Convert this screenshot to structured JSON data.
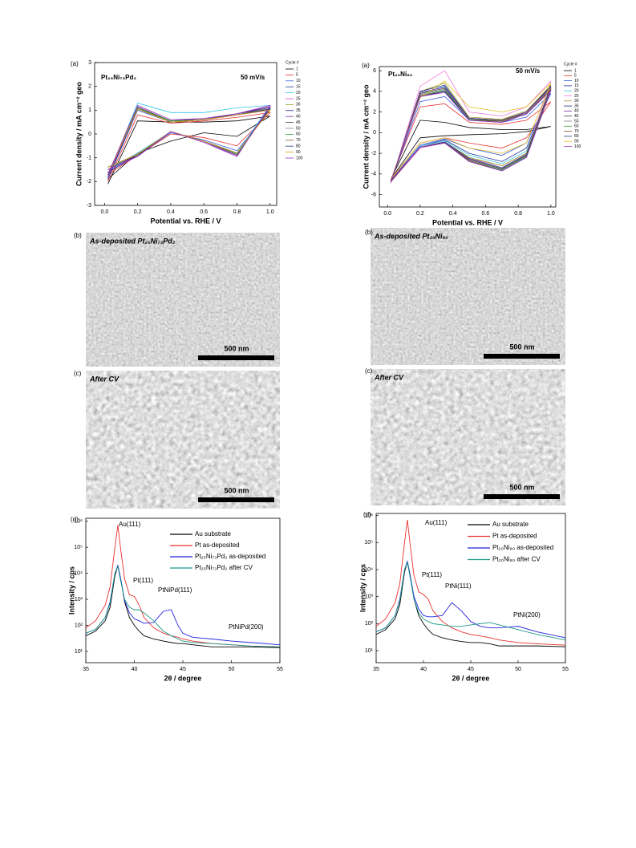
{
  "chart_data": [
    {
      "type": "line",
      "panel_label": "(a)",
      "xlabel": "Potential vs. RHE / V",
      "ylabel": "Current density / mA cm⁻² geo",
      "annotations": [
        {
          "text": "Pt₂₅Ni₇₃Pd₂"
        },
        {
          "text": "50 mV/s"
        }
      ],
      "x": [
        0.02,
        0.2,
        0.4,
        0.6,
        0.8,
        1.0,
        0.8,
        0.6,
        0.4,
        0.2,
        0.02
      ],
      "xlim": [
        -0.06,
        1.04
      ],
      "xticks": [
        {
          "value": 0,
          "label": "0.0"
        },
        0.2,
        0.4,
        0.6,
        0.8,
        {
          "value": 1,
          "label": "1.0"
        }
      ],
      "ylim": [
        -3,
        3
      ],
      "yticks": [
        -3,
        -2,
        -1,
        0,
        1,
        2,
        3
      ],
      "legend_title": "Cycle #",
      "series": [
        {
          "name": "1",
          "color": "#000000",
          "values": [
            -2.1,
            0.55,
            0.5,
            0.5,
            0.55,
            0.75,
            -0.1,
            0.05,
            -0.3,
            -0.8,
            -1.9
          ]
        },
        {
          "name": "5",
          "color": "#e8312f",
          "values": [
            -2.0,
            0.8,
            0.45,
            0.55,
            0.7,
            0.9,
            -0.5,
            -0.15,
            0.0,
            -0.9,
            -1.7
          ]
        },
        {
          "name": "10",
          "color": "#3b5fe0",
          "values": [
            -1.9,
            1.0,
            0.5,
            0.6,
            0.8,
            1.0,
            -0.7,
            -0.25,
            0.05,
            -0.9,
            -1.6
          ]
        },
        {
          "name": "15",
          "color": "#1f2f9a",
          "values": [
            -1.9,
            1.05,
            0.5,
            0.6,
            0.8,
            1.05,
            -0.8,
            -0.3,
            0.1,
            -0.9,
            -1.6
          ]
        },
        {
          "name": "20",
          "color": "#31c6e8",
          "values": [
            -1.8,
            1.3,
            0.9,
            0.9,
            1.1,
            1.2,
            -0.8,
            -0.3,
            0.1,
            -0.8,
            -1.5
          ]
        },
        {
          "name": "25",
          "color": "#e04fd0",
          "values": [
            -1.8,
            1.1,
            0.5,
            0.6,
            0.85,
            1.1,
            -0.9,
            -0.3,
            0.1,
            -0.9,
            -1.5
          ]
        },
        {
          "name": "30",
          "color": "#9a9a20",
          "values": [
            -1.8,
            1.1,
            0.5,
            0.6,
            0.85,
            1.1,
            -0.85,
            -0.3,
            0.1,
            -0.9,
            -1.5
          ]
        },
        {
          "name": "35",
          "color": "#202080",
          "values": [
            -1.8,
            1.1,
            0.55,
            0.6,
            0.85,
            1.1,
            -0.85,
            -0.3,
            0.1,
            -0.9,
            -1.5
          ]
        },
        {
          "name": "40",
          "color": "#7a2a9a",
          "values": [
            -1.8,
            1.15,
            0.55,
            0.65,
            0.85,
            1.15,
            -0.9,
            -0.35,
            0.1,
            -0.9,
            -1.5
          ]
        },
        {
          "name": "45",
          "color": "#404040",
          "values": [
            -1.7,
            1.1,
            0.55,
            0.6,
            0.8,
            1.1,
            -0.85,
            -0.3,
            0.1,
            -0.9,
            -1.4
          ]
        },
        {
          "name": "50",
          "color": "#808080",
          "values": [
            -1.7,
            1.1,
            0.55,
            0.6,
            0.8,
            1.1,
            -0.85,
            -0.3,
            0.1,
            -0.85,
            -1.4
          ]
        },
        {
          "name": "60",
          "color": "#2a9a3a",
          "values": [
            -1.7,
            1.1,
            0.55,
            0.6,
            0.8,
            1.05,
            -0.85,
            -0.3,
            0.1,
            -0.85,
            -1.4
          ]
        },
        {
          "name": "70",
          "color": "#8a5a2a",
          "values": [
            -1.7,
            1.05,
            0.5,
            0.6,
            0.8,
            1.05,
            -0.8,
            -0.3,
            0.1,
            -0.85,
            -1.4
          ]
        },
        {
          "name": "80",
          "color": "#2a3a8a",
          "values": [
            -1.7,
            1.05,
            0.5,
            0.6,
            0.8,
            1.05,
            -0.8,
            -0.3,
            0.1,
            -0.85,
            -1.4
          ]
        },
        {
          "name": "90",
          "color": "#e0a020",
          "values": [
            -1.7,
            1.05,
            0.5,
            0.6,
            0.8,
            1.0,
            -0.8,
            -0.3,
            0.1,
            -0.85,
            -1.4
          ]
        },
        {
          "name": "100",
          "color": "#9a30c0",
          "values": [
            -1.7,
            1.2,
            0.6,
            0.65,
            0.85,
            1.2,
            -0.95,
            -0.35,
            0.1,
            -0.95,
            -1.5
          ]
        }
      ]
    },
    {
      "type": "line",
      "panel_label": "(a)",
      "xlabel": "Potential vs. RHE / V",
      "ylabel": "Current density / mA cm⁻² geo",
      "annotations": [
        {
          "text": "Pt₂₀Ni₈₀"
        },
        {
          "text": "50 mV/s"
        }
      ],
      "x": [
        0.02,
        0.2,
        0.35,
        0.5,
        0.7,
        0.85,
        1.0,
        0.85,
        0.7,
        0.5,
        0.35,
        0.2,
        0.02
      ],
      "xlim": [
        -0.05,
        1.03
      ],
      "xticks": [
        {
          "value": 0,
          "label": "0.0"
        },
        0.2,
        0.4,
        0.6,
        0.8,
        {
          "value": 1,
          "label": "1.0"
        }
      ],
      "ylim": [
        -7.2,
        6.4
      ],
      "yticks": [
        -6,
        -4,
        -2,
        0,
        2,
        4,
        6
      ],
      "legend_title": "Cycle #",
      "series": [
        {
          "name": "1",
          "color": "#000000",
          "values": [
            -4.5,
            1.2,
            1.0,
            0.5,
            0.3,
            0.3,
            0.6,
            0.1,
            -0.1,
            -0.2,
            -0.3,
            -0.5,
            -4.5
          ]
        },
        {
          "name": "5",
          "color": "#e8312f",
          "values": [
            -4.6,
            2.5,
            2.8,
            1.0,
            0.8,
            1.2,
            3.0,
            -0.5,
            -1.5,
            -1.0,
            -0.5,
            -1.0,
            -4.5
          ]
        },
        {
          "name": "10",
          "color": "#3b5fe0",
          "values": [
            -4.7,
            3.0,
            3.5,
            1.2,
            1.0,
            1.5,
            3.8,
            -1.0,
            -2.2,
            -1.5,
            -0.6,
            -1.2,
            -4.6
          ]
        },
        {
          "name": "15",
          "color": "#1f2f9a",
          "values": [
            -4.8,
            3.5,
            4.0,
            1.3,
            1.1,
            1.8,
            4.2,
            -1.5,
            -2.8,
            -2.0,
            -0.7,
            -1.3,
            -4.7
          ]
        },
        {
          "name": "20",
          "color": "#31c6e8",
          "values": [
            -4.8,
            3.8,
            4.5,
            1.4,
            1.2,
            2.0,
            4.5,
            -1.8,
            -3.0,
            -2.2,
            -0.8,
            -1.3,
            -4.7
          ]
        },
        {
          "name": "25",
          "color": "#f07ad8",
          "values": [
            -4.9,
            4.5,
            6.0,
            2.0,
            1.6,
            2.5,
            5.0,
            -2.0,
            -3.2,
            -2.5,
            -1.0,
            -1.5,
            -4.8
          ]
        },
        {
          "name": "30",
          "color": "#9a9a20",
          "values": [
            -4.8,
            4.0,
            4.8,
            1.5,
            1.3,
            2.1,
            4.6,
            -2.0,
            -3.2,
            -2.4,
            -0.9,
            -1.4,
            -4.7
          ]
        },
        {
          "name": "35",
          "color": "#202080",
          "values": [
            -4.8,
            4.0,
            4.6,
            1.4,
            1.2,
            2.0,
            4.5,
            -2.1,
            -3.4,
            -2.5,
            -0.9,
            -1.4,
            -4.7
          ]
        },
        {
          "name": "40",
          "color": "#7a2a9a",
          "values": [
            -4.8,
            3.9,
            4.4,
            1.4,
            1.2,
            2.0,
            4.4,
            -2.2,
            -3.5,
            -2.6,
            -1.0,
            -1.4,
            -4.7
          ]
        },
        {
          "name": "45",
          "color": "#404040",
          "values": [
            -4.8,
            3.8,
            4.3,
            1.3,
            1.2,
            1.9,
            4.3,
            -2.2,
            -3.5,
            -2.6,
            -1.0,
            -1.4,
            -4.7
          ]
        },
        {
          "name": "50",
          "color": "#808080",
          "values": [
            -4.7,
            3.7,
            4.2,
            1.3,
            1.1,
            1.9,
            4.3,
            -2.3,
            -3.6,
            -2.7,
            -1.0,
            -1.4,
            -4.6
          ]
        },
        {
          "name": "60",
          "color": "#2a9a3a",
          "values": [
            -4.7,
            3.6,
            4.1,
            1.3,
            1.1,
            1.8,
            4.2,
            -2.3,
            -3.6,
            -2.7,
            -1.0,
            -1.4,
            -4.6
          ]
        },
        {
          "name": "70",
          "color": "#8a5a2a",
          "values": [
            -4.7,
            3.6,
            4.0,
            1.2,
            1.1,
            1.8,
            4.2,
            -2.4,
            -3.7,
            -2.7,
            -1.0,
            -1.4,
            -4.6
          ]
        },
        {
          "name": "80",
          "color": "#2a3a8a",
          "values": [
            -4.7,
            3.5,
            4.0,
            1.2,
            1.0,
            1.8,
            4.1,
            -2.4,
            -3.7,
            -2.8,
            -1.0,
            -1.4,
            -4.6
          ]
        },
        {
          "name": "90",
          "color": "#e0c020",
          "values": [
            -4.6,
            3.4,
            5.0,
            2.5,
            2.0,
            2.5,
            4.8,
            -1.0,
            -2.0,
            -1.5,
            -0.5,
            -1.0,
            -4.5
          ]
        },
        {
          "name": "100",
          "color": "#9a30c0",
          "values": [
            -4.7,
            3.5,
            3.9,
            1.2,
            1.0,
            1.8,
            4.1,
            -2.4,
            -3.7,
            -2.8,
            -1.0,
            -1.4,
            -4.6
          ]
        }
      ]
    },
    {
      "type": "line",
      "log_y": true,
      "panel_label": "(d)",
      "xlabel": "2θ / degree",
      "ylabel": "Intensity / cps",
      "annotations": [
        {
          "text": "Au(111)",
          "color": "#000000"
        },
        {
          "text": "Pt(111)",
          "color": "#e8312f"
        },
        {
          "text": "PtNiPd(111)",
          "color": "#2222dd"
        },
        {
          "text": "PtNiPd(200)",
          "color": "#2222dd"
        }
      ],
      "x": [
        35,
        36,
        37,
        37.5,
        38,
        38.3,
        38.6,
        39,
        39.5,
        40,
        40.5,
        41,
        42,
        43,
        43.8,
        44.5,
        45,
        46,
        48,
        50,
        52,
        55
      ],
      "xlim": [
        35,
        55
      ],
      "xticks": [
        35,
        40,
        45,
        50,
        55
      ],
      "ylim": [
        3.7,
        1300000
      ],
      "yticks": [
        {
          "value": 10,
          "label": "10¹"
        },
        {
          "value": 100,
          "label": "10²"
        },
        {
          "value": 1000,
          "label": "10³"
        },
        {
          "value": 10000,
          "label": "10⁴"
        },
        {
          "value": 100000,
          "label": "10⁵"
        },
        {
          "value": 1000000,
          "label": "10⁶"
        }
      ],
      "series": [
        {
          "name": "Au substrate",
          "color": "#000000",
          "values": [
            40,
            60,
            150,
            500,
            8000,
            20000,
            6000,
            800,
            200,
            100,
            60,
            40,
            30,
            25,
            22,
            20,
            20,
            18,
            15,
            15,
            15,
            14
          ]
        },
        {
          "name": "Pt as-deposited",
          "color": "#e8312f",
          "values": [
            80,
            150,
            600,
            3000,
            100000,
            700000,
            80000,
            6000,
            1500,
            1300,
            600,
            200,
            80,
            50,
            40,
            35,
            30,
            25,
            20,
            18,
            16,
            15
          ]
        },
        {
          "name": "Pt₂₅Ni₇₃Pd₂ as-deposited",
          "color": "#2222dd",
          "values": [
            50,
            70,
            200,
            800,
            10000,
            20000,
            6000,
            900,
            300,
            180,
            150,
            120,
            130,
            350,
            400,
            100,
            50,
            35,
            30,
            25,
            22,
            18
          ]
        },
        {
          "name": "Pt₂₅Ni₇₃Pd₂ after CV",
          "color": "#1f9a8a",
          "values": [
            50,
            70,
            200,
            700,
            10000,
            18000,
            5000,
            1000,
            500,
            400,
            400,
            300,
            150,
            60,
            40,
            30,
            25,
            22,
            20,
            18,
            16,
            15
          ]
        }
      ]
    },
    {
      "type": "line",
      "log_y": true,
      "panel_label": "(d)",
      "xlabel": "2θ / degree",
      "ylabel": "Intensity / cps",
      "annotations": [
        {
          "text": "Au(111)",
          "color": "#000000"
        },
        {
          "text": "Pt(111)",
          "color": "#e8312f"
        },
        {
          "text": "PtNi(111)",
          "color": "#2222dd"
        },
        {
          "text": "PtNi(200)",
          "color": "#2222dd"
        }
      ],
      "x": [
        35,
        36,
        37,
        37.5,
        38,
        38.3,
        38.6,
        39,
        39.5,
        40,
        40.5,
        41,
        42,
        43,
        44,
        45,
        46,
        47,
        48,
        50,
        52,
        55
      ],
      "xlim": [
        35,
        55
      ],
      "xticks": [
        35,
        40,
        45,
        50,
        55
      ],
      "ylim": [
        3.6,
        1200000
      ],
      "yticks": [
        {
          "value": 10,
          "label": "10¹"
        },
        {
          "value": 100,
          "label": "10²"
        },
        {
          "value": 1000,
          "label": "10³"
        },
        {
          "value": 10000,
          "label": "10⁴"
        },
        {
          "value": 100000,
          "label": "10⁵"
        },
        {
          "value": 1000000,
          "label": "10⁶"
        }
      ],
      "series": [
        {
          "name": "Au substrate",
          "color": "#000000",
          "values": [
            40,
            60,
            150,
            500,
            8000,
            20000,
            6000,
            800,
            200,
            100,
            60,
            40,
            30,
            25,
            22,
            20,
            20,
            18,
            15,
            15,
            15,
            14
          ]
        },
        {
          "name": "Pt as-deposited",
          "color": "#e8312f",
          "values": [
            80,
            150,
            600,
            3000,
            100000,
            700000,
            80000,
            6000,
            1500,
            1200,
            800,
            300,
            120,
            70,
            50,
            40,
            35,
            30,
            25,
            20,
            18,
            16
          ]
        },
        {
          "name": "Pt₂₀Ni₈₀ as-deposited",
          "color": "#2222dd",
          "values": [
            50,
            70,
            200,
            800,
            10000,
            20000,
            6000,
            1000,
            350,
            200,
            180,
            180,
            200,
            600,
            300,
            120,
            80,
            70,
            70,
            80,
            50,
            30
          ]
        },
        {
          "name": "Pt₂₀Ni₈₀ after CV",
          "color": "#1f9a8a",
          "values": [
            50,
            70,
            200,
            700,
            10000,
            18000,
            5000,
            800,
            250,
            150,
            120,
            100,
            90,
            80,
            80,
            90,
            100,
            110,
            90,
            60,
            40,
            25
          ]
        }
      ]
    }
  ],
  "images": [
    {
      "label": "(b)",
      "caption": "As-deposited Pt₂₅Ni₇₃Pd₂",
      "scale_bar": "500 nm"
    },
    {
      "label": "(b)",
      "caption": "As-deposited Pt₂₀Ni₈₀",
      "scale_bar": "500 nm"
    },
    {
      "label": "(c)",
      "caption": "After CV",
      "scale_bar": "500 nm"
    },
    {
      "label": "(c)",
      "caption": "After CV",
      "scale_bar": "500 nm"
    }
  ]
}
